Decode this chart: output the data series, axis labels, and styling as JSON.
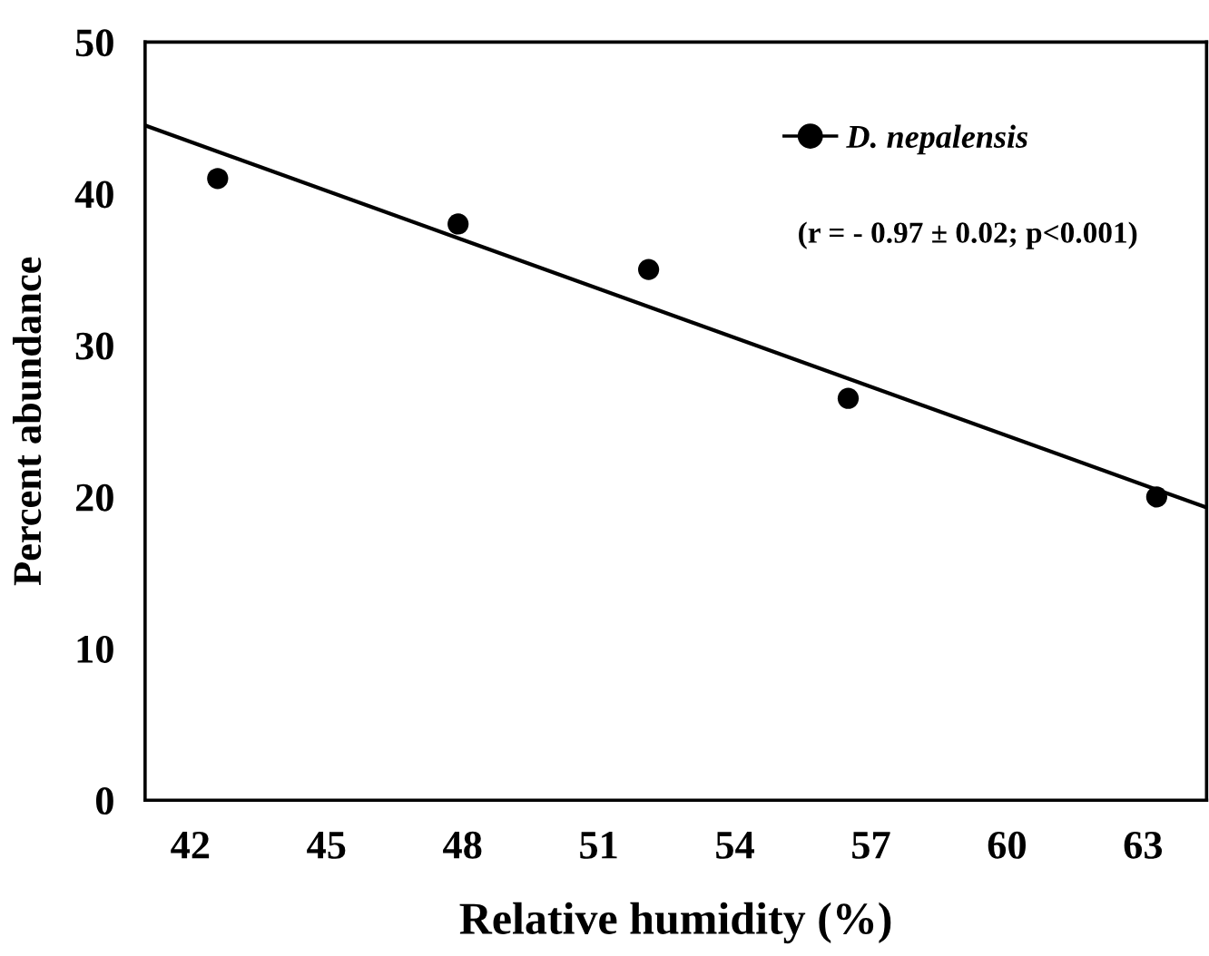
{
  "chart_data": {
    "type": "scatter",
    "xlabel": "Relative humidity (%)",
    "ylabel": "Percent abundance",
    "xlim": [
      41,
      64.4
    ],
    "xticks": [
      42,
      45,
      48,
      51,
      54,
      57,
      60,
      63
    ],
    "ylim": [
      0,
      50
    ],
    "yticks": [
      0,
      10,
      20,
      30,
      40,
      50
    ],
    "grid": false,
    "legend": "top right",
    "series": [
      {
        "name": "D. nepalensis",
        "color": "#000000",
        "marker": "circle",
        "x": [
          42.6,
          47.9,
          52.1,
          56.5,
          63.3
        ],
        "values": [
          41,
          38,
          35,
          26.5,
          20
        ]
      },
      {
        "type": "line",
        "color": "#000000",
        "x": [
          41,
          64.4
        ],
        "values": [
          44.5,
          19.3
        ],
        "line_style": "solid",
        "marker": "none"
      }
    ],
    "annotations": [
      "(r = - 0.97 ± 0.02; p<0.001)"
    ]
  }
}
